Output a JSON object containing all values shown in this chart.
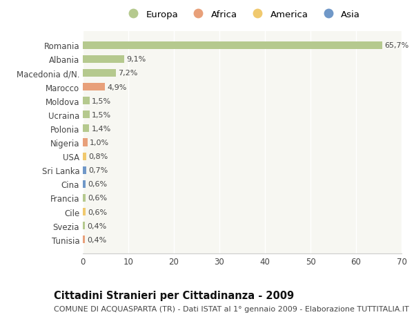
{
  "title": "Cittadini Stranieri per Cittadinanza - 2009",
  "subtitle": "COMUNE DI ACQUASPARTA (TR) - Dati ISTAT al 1° gennaio 2009 - Elaborazione TUTTITALIA.IT",
  "categories": [
    "Romania",
    "Albania",
    "Macedonia d/N.",
    "Marocco",
    "Moldova",
    "Ucraina",
    "Polonia",
    "Nigeria",
    "USA",
    "Sri Lanka",
    "Cina",
    "Francia",
    "Cile",
    "Svezia",
    "Tunisia"
  ],
  "values": [
    65.7,
    9.1,
    7.2,
    4.9,
    1.5,
    1.5,
    1.4,
    1.0,
    0.8,
    0.7,
    0.6,
    0.6,
    0.6,
    0.4,
    0.4
  ],
  "labels": [
    "65,7%",
    "9,1%",
    "7,2%",
    "4,9%",
    "1,5%",
    "1,5%",
    "1,4%",
    "1,0%",
    "0,8%",
    "0,7%",
    "0,6%",
    "0,6%",
    "0,6%",
    "0,4%",
    "0,4%"
  ],
  "colors": [
    "#b5c98e",
    "#b5c98e",
    "#b5c98e",
    "#e8a07a",
    "#b5c98e",
    "#b5c98e",
    "#b5c98e",
    "#e8a07a",
    "#f0c96e",
    "#7098c8",
    "#7098c8",
    "#b5c98e",
    "#f0c96e",
    "#b5c98e",
    "#e8a07a"
  ],
  "legend_labels": [
    "Europa",
    "Africa",
    "America",
    "Asia"
  ],
  "legend_colors": [
    "#b5c98e",
    "#e8a07a",
    "#f0c96e",
    "#7098c8"
  ],
  "xlim": [
    0,
    70
  ],
  "xticks": [
    0,
    10,
    20,
    30,
    40,
    50,
    60,
    70
  ],
  "background_color": "#ffffff",
  "plot_bg_color": "#f7f7f2",
  "bar_height": 0.55,
  "title_fontsize": 10.5,
  "subtitle_fontsize": 8.0,
  "tick_fontsize": 8.5,
  "label_fontsize": 8.0,
  "legend_fontsize": 9.5
}
